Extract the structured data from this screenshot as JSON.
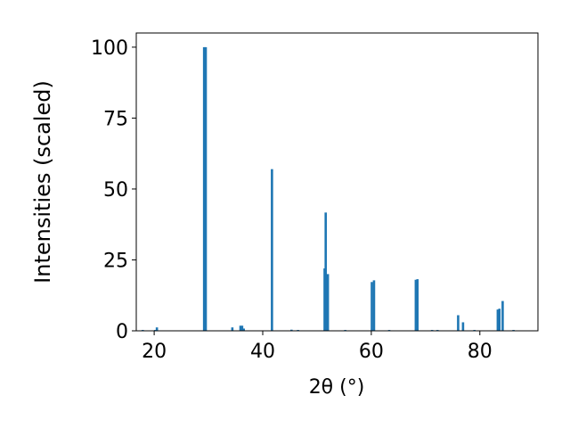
{
  "chart_data": {
    "type": "bar",
    "x_label": "2θ (°)",
    "y_label": "Intensities (scaled)",
    "x": [
      17.9,
      20.2,
      20.5,
      29.2,
      29.5,
      34.4,
      35.9,
      36.2,
      36.5,
      41.7,
      45.3,
      46.5,
      51.4,
      51.6,
      52.0,
      55.2,
      60.1,
      60.5,
      63.3,
      68.2,
      68.5,
      71.2,
      72.2,
      76.0,
      76.9,
      79.0,
      83.3,
      83.6,
      84.2,
      86.2
    ],
    "values": [
      0.3,
      0.3,
      1.2,
      100,
      100,
      1.2,
      1.8,
      1.8,
      0.8,
      57,
      0.4,
      0.3,
      22,
      41.7,
      20,
      0.3,
      17.2,
      17.8,
      0.3,
      18,
      18.2,
      0.3,
      0.3,
      5.5,
      3,
      0.3,
      7.5,
      7.8,
      10.5,
      0.3
    ],
    "color": "#1f77b4",
    "xlim": [
      16.7,
      90.7
    ],
    "xticks": [
      20,
      40,
      60,
      80
    ],
    "ylim": [
      0,
      105
    ],
    "yticks": [
      0,
      25,
      50,
      75,
      100
    ]
  }
}
